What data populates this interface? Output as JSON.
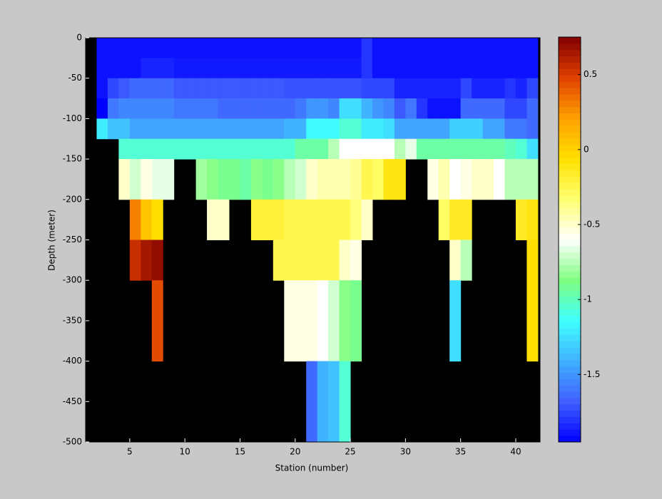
{
  "chart_data": {
    "type": "heatmap",
    "x_label": "Station (number)",
    "y_label": "Depth (meter)",
    "xlim": [
      1,
      42.2
    ],
    "ylim": [
      -500,
      0
    ],
    "xticks": [
      5,
      10,
      15,
      20,
      25,
      30,
      35,
      40
    ],
    "yticks": [
      0,
      -50,
      -100,
      -150,
      -200,
      -250,
      -300,
      -350,
      -400,
      -450,
      -500
    ],
    "x_edges": [
      2,
      3,
      4,
      5,
      6,
      7,
      8,
      9,
      10,
      11,
      12,
      13,
      14,
      15,
      16,
      17,
      18,
      19,
      20,
      21,
      22,
      23,
      24,
      25,
      26,
      27,
      28,
      29,
      30,
      31,
      32,
      33,
      34,
      35,
      36,
      37,
      38,
      39,
      40,
      41,
      42
    ],
    "y_edges": [
      0,
      -25,
      -50,
      -75,
      -100,
      -125,
      -150,
      -200,
      -250,
      -300,
      -400,
      -500
    ],
    "z": [
      [
        -1.9,
        -1.9,
        -1.9,
        -1.9,
        -1.9,
        -1.9,
        -1.9,
        -1.9,
        -1.9,
        -1.9,
        -1.9,
        -1.9,
        -1.9,
        -1.9,
        -1.9,
        -1.9,
        -1.9,
        -1.9,
        -1.9,
        -1.9,
        -1.9,
        -1.9,
        -1.9,
        -1.9,
        -1.8,
        -1.9,
        -1.9,
        -1.9,
        -1.9,
        -1.9,
        -1.9,
        -1.9,
        -1.9,
        -1.9,
        -1.9,
        -1.9,
        -1.9,
        -1.9,
        -1.9,
        -1.9
      ],
      [
        -1.9,
        -1.9,
        -1.9,
        -1.9,
        -1.85,
        -1.85,
        -1.85,
        -1.88,
        -1.88,
        -1.88,
        -1.88,
        -1.88,
        -1.88,
        -1.88,
        -1.88,
        -1.88,
        -1.88,
        -1.88,
        -1.88,
        -1.88,
        -1.88,
        -1.88,
        -1.88,
        -1.88,
        -1.8,
        -1.9,
        -1.9,
        -1.9,
        -1.9,
        -1.9,
        -1.9,
        -1.9,
        -1.9,
        -1.9,
        -1.9,
        -1.9,
        -1.9,
        -1.9,
        -1.9,
        -1.9
      ],
      [
        -1.9,
        -1.75,
        -1.7,
        -1.65,
        -1.65,
        -1.65,
        -1.65,
        -1.7,
        -1.7,
        -1.7,
        -1.7,
        -1.7,
        -1.7,
        -1.7,
        -1.7,
        -1.7,
        -1.7,
        -1.72,
        -1.72,
        -1.72,
        -1.72,
        -1.72,
        -1.72,
        -1.72,
        -1.75,
        -1.75,
        -1.75,
        -1.85,
        -1.85,
        -1.85,
        -1.85,
        -1.85,
        -1.85,
        -1.75,
        -1.85,
        -1.85,
        -1.85,
        -1.8,
        -1.85,
        -1.75
      ],
      [
        -1.95,
        -1.6,
        -1.55,
        -1.55,
        -1.55,
        -1.55,
        -1.55,
        -1.6,
        -1.6,
        -1.6,
        -1.6,
        -1.65,
        -1.65,
        -1.65,
        -1.65,
        -1.65,
        -1.65,
        -1.65,
        -1.6,
        -1.5,
        -1.5,
        -1.55,
        -1.25,
        -1.25,
        -1.4,
        -1.5,
        -1.55,
        -1.7,
        -1.6,
        -1.8,
        -1.9,
        -1.9,
        -1.9,
        -1.65,
        -1.65,
        -1.65,
        -1.65,
        -1.75,
        -1.75,
        -1.65
      ],
      [
        -1.2,
        -1.35,
        -1.35,
        -1.45,
        -1.45,
        -1.45,
        -1.45,
        -1.45,
        -1.45,
        -1.45,
        -1.45,
        -1.45,
        -1.45,
        -1.45,
        -1.45,
        -1.45,
        -1.45,
        -1.4,
        -1.4,
        -1.15,
        -1.15,
        -1.15,
        -1.05,
        -1.05,
        -1.2,
        -1.2,
        -1.25,
        -1.45,
        -1.45,
        -1.45,
        -1.45,
        -1.45,
        -1.3,
        -1.3,
        -1.3,
        -1.45,
        -1.45,
        -1.6,
        -1.6,
        -1.65
      ],
      [
        null,
        null,
        -1.05,
        -1.05,
        -1.05,
        -1.05,
        -1.05,
        -1.05,
        -1.05,
        -1.05,
        -1.05,
        -1.05,
        -1.05,
        -1.05,
        -1.05,
        -1.05,
        -1.05,
        -1.05,
        -0.95,
        -0.95,
        -0.95,
        -0.75,
        -0.6,
        -0.6,
        -0.6,
        -0.6,
        -0.6,
        -0.75,
        -0.65,
        -0.95,
        -0.95,
        -0.95,
        -0.95,
        -0.95,
        -0.95,
        -0.95,
        -0.95,
        -1.0,
        -1.05,
        -1.25
      ],
      [
        null,
        null,
        -0.5,
        -0.7,
        -0.55,
        -0.65,
        -0.65,
        null,
        null,
        -0.8,
        -0.85,
        -0.9,
        -0.9,
        -0.95,
        -0.85,
        -0.9,
        -0.85,
        -0.75,
        -0.7,
        -0.5,
        -0.45,
        -0.45,
        -0.45,
        -0.4,
        -0.25,
        -0.3,
        -0.1,
        -0.1,
        null,
        null,
        -0.55,
        -0.45,
        -0.6,
        -0.55,
        -0.5,
        -0.5,
        -0.6,
        -0.75,
        -0.75,
        -0.75
      ],
      [
        null,
        null,
        null,
        0.3,
        0.05,
        -0.05,
        null,
        null,
        null,
        null,
        -0.5,
        -0.5,
        null,
        null,
        -0.2,
        -0.2,
        -0.2,
        -0.25,
        -0.25,
        -0.25,
        -0.25,
        -0.25,
        -0.25,
        -0.35,
        -0.5,
        null,
        null,
        null,
        null,
        null,
        null,
        -0.3,
        -0.15,
        -0.15,
        null,
        null,
        null,
        null,
        -0.15,
        -0.1
      ],
      [
        null,
        null,
        null,
        0.55,
        0.65,
        0.7,
        null,
        null,
        null,
        null,
        null,
        null,
        null,
        null,
        null,
        null,
        -0.25,
        -0.25,
        -0.25,
        -0.25,
        -0.25,
        -0.25,
        -0.5,
        -0.55,
        null,
        null,
        null,
        null,
        null,
        null,
        null,
        null,
        -0.5,
        -0.75,
        null,
        null,
        null,
        null,
        null,
        -0.05
      ],
      [
        null,
        null,
        null,
        null,
        null,
        0.45,
        null,
        null,
        null,
        null,
        null,
        null,
        null,
        null,
        null,
        null,
        null,
        -0.55,
        -0.55,
        -0.55,
        -0.6,
        -0.7,
        -0.85,
        -0.9,
        null,
        null,
        null,
        null,
        null,
        null,
        null,
        null,
        -1.25,
        null,
        null,
        null,
        null,
        null,
        null,
        -0.05
      ],
      [
        null,
        null,
        null,
        null,
        null,
        null,
        null,
        null,
        null,
        null,
        null,
        null,
        null,
        null,
        null,
        null,
        null,
        null,
        null,
        -1.65,
        -1.4,
        -1.35,
        -1.05,
        null,
        null,
        null,
        null,
        null,
        null,
        null,
        null,
        null,
        null,
        null,
        null,
        null,
        null,
        null,
        null,
        null
      ]
    ],
    "clim": [
      -1.95,
      0.75
    ],
    "cticks": [
      -1.5,
      -1,
      -0.5,
      0,
      0.5
    ],
    "colormap": [
      "#0000ff",
      "#4060ff",
      "#40b0ff",
      "#40ffff",
      "#80ff80",
      "#ffffff",
      "#ffff70",
      "#ffe000",
      "#ffa000",
      "#e04000",
      "#800000"
    ],
    "missing_color": "#000000"
  }
}
